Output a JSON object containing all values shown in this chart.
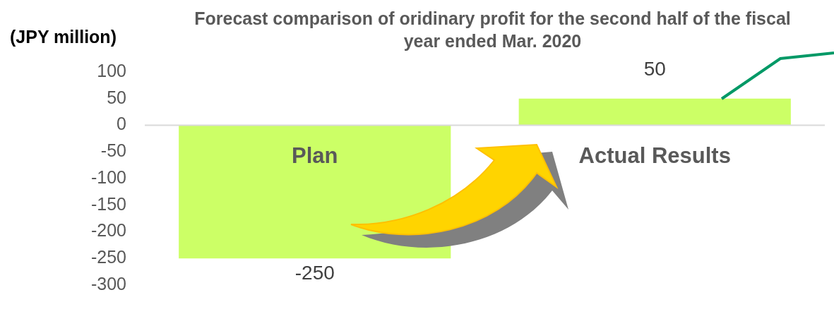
{
  "chart_data": {
    "type": "bar",
    "title": "Forecast comparison of oridinary profit for the second half of the fiscal year ended Mar. 2020",
    "ylabel": "(JPY million)",
    "categories": [
      "Plan",
      "Actual Results"
    ],
    "values": [
      -250,
      50
    ],
    "color": "#ccff66",
    "ylim": [
      -300,
      100
    ],
    "yticks": [
      -300,
      -250,
      -200,
      -150,
      -100,
      -50,
      0,
      50,
      100
    ],
    "data_labels": true,
    "grid": false,
    "legend": false
  }
}
